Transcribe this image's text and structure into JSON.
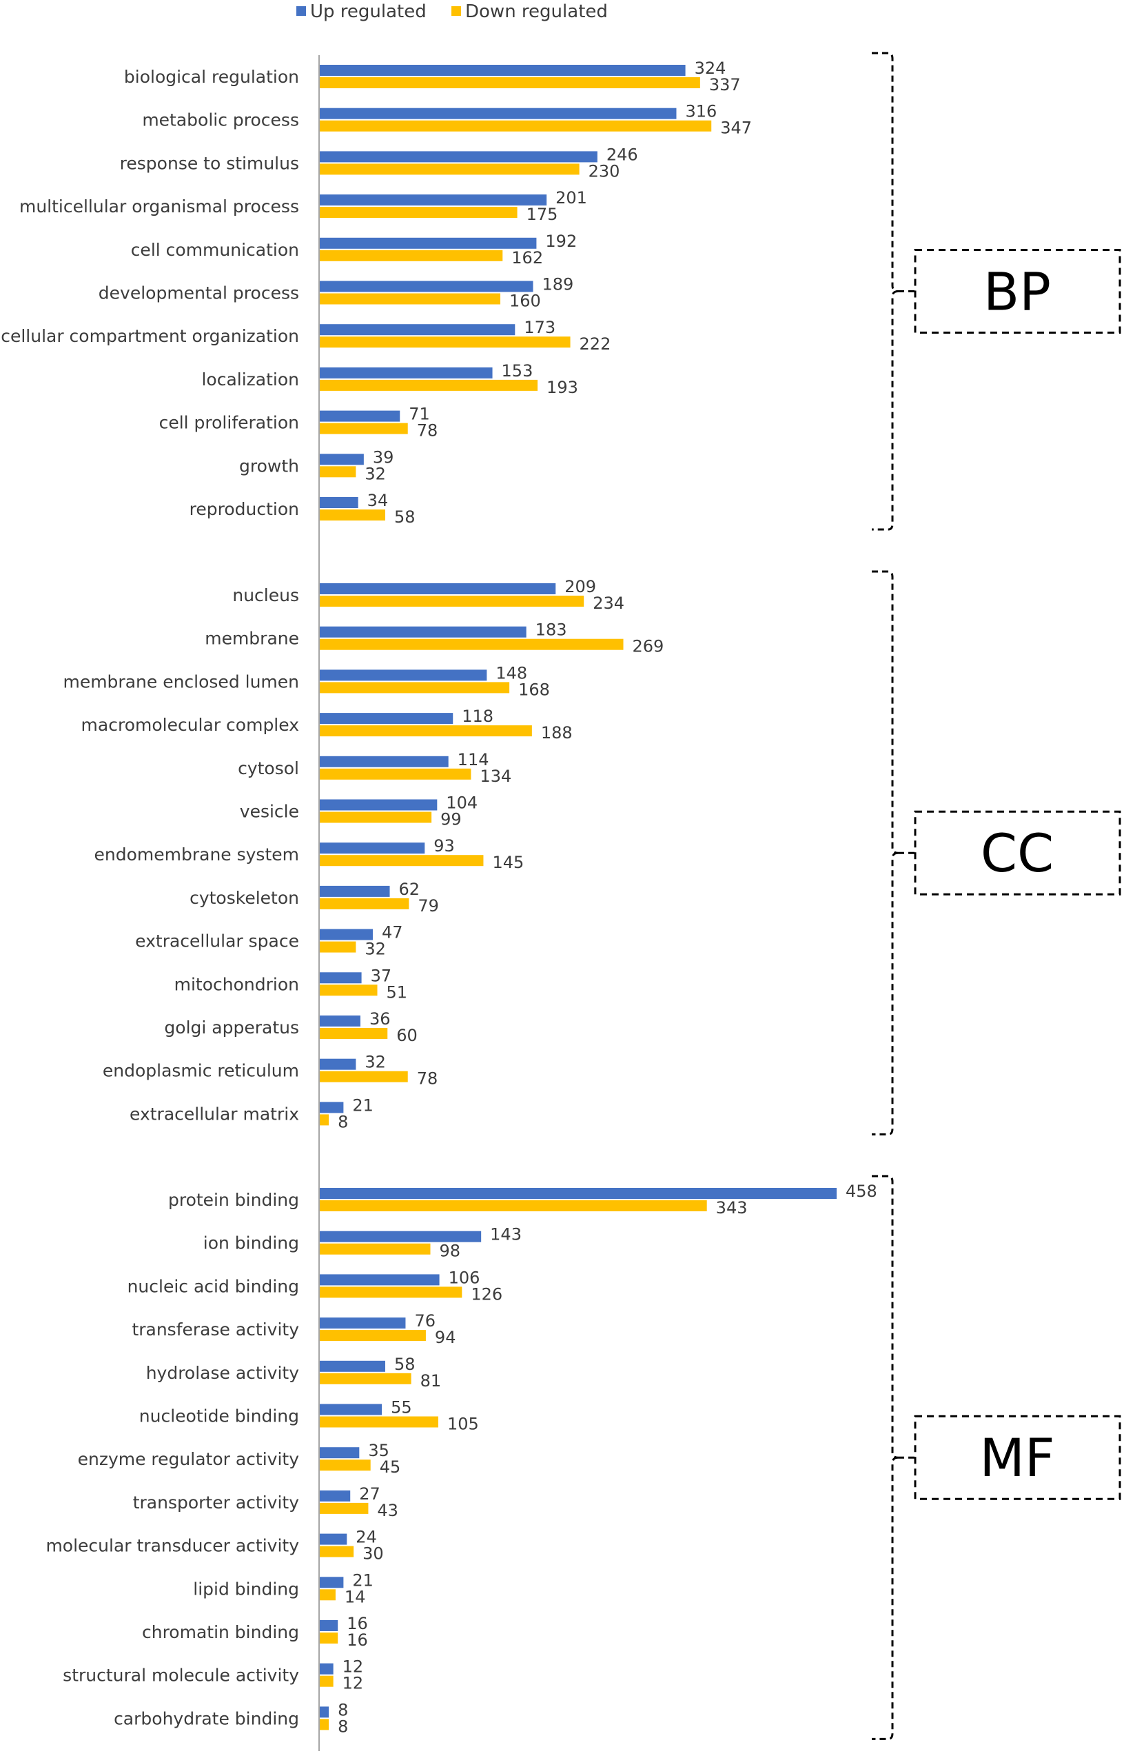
{
  "chart_data": {
    "type": "bar",
    "orientation": "horizontal",
    "legend": {
      "position": "top",
      "items": [
        "Up regulated",
        "Down regulated"
      ]
    },
    "colors": {
      "up": "#4472c4",
      "down": "#ffc000",
      "axis": "#a6a6a6",
      "text": "#3c3c3c",
      "bracket": "#000000"
    },
    "groups": [
      {
        "name": "BP",
        "categories": [
          "biological regulation",
          "metabolic process",
          "response to stimulus",
          "multicellular organismal process",
          "cell communication",
          "developmental process",
          "cellular compartment organization",
          "localization",
          "cell proliferation",
          "growth",
          "reproduction"
        ],
        "up": [
          324,
          316,
          246,
          201,
          192,
          189,
          173,
          153,
          71,
          39,
          34
        ],
        "down": [
          337,
          347,
          230,
          175,
          162,
          160,
          222,
          193,
          78,
          32,
          58
        ]
      },
      {
        "name": "CC",
        "categories": [
          "nucleus",
          "membrane",
          "membrane enclosed lumen",
          "macromolecular complex",
          "cytosol",
          "vesicle",
          "endomembrane system",
          "cytoskeleton",
          "extracellular space",
          "mitochondrion",
          "golgi apperatus",
          "endoplasmic reticulum",
          "extracellular matrix"
        ],
        "up": [
          209,
          183,
          148,
          118,
          114,
          104,
          93,
          62,
          47,
          37,
          36,
          32,
          21
        ],
        "down": [
          234,
          269,
          168,
          188,
          134,
          99,
          145,
          79,
          32,
          51,
          60,
          78,
          8
        ]
      },
      {
        "name": "MF",
        "categories": [
          "protein binding",
          "ion binding",
          "nucleic acid binding",
          "transferase activity",
          "hydrolase activity",
          "nucleotide binding",
          "enzyme regulator activity",
          "transporter activity",
          "molecular transducer activity",
          "lipid binding",
          "chromatin binding",
          "structural molecule activity",
          "carbohydrate binding"
        ],
        "up": [
          458,
          143,
          106,
          76,
          58,
          55,
          35,
          27,
          24,
          21,
          16,
          12,
          8
        ],
        "down": [
          343,
          98,
          126,
          94,
          81,
          105,
          45,
          43,
          30,
          14,
          16,
          12,
          8
        ]
      }
    ],
    "xlim": [
      0,
      500
    ]
  }
}
